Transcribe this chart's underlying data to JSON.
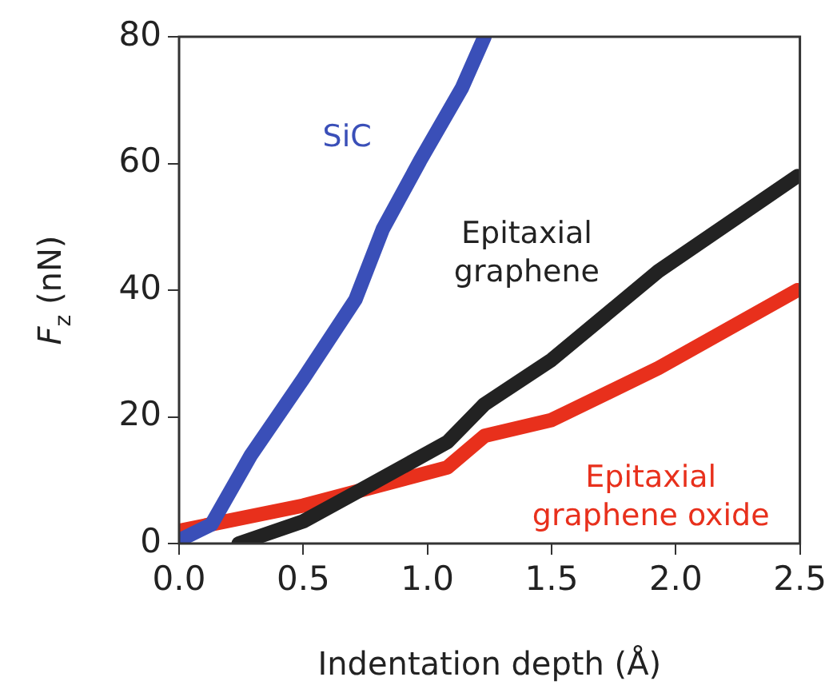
{
  "chart_data": {
    "type": "line",
    "xlabel": "Indentation depth (Å)",
    "ylabel": "F$_{z}$ (nN)",
    "xlim": [
      0,
      2.5
    ],
    "xticks": [
      {
        "value": 0,
        "label": "0.0"
      },
      0.5,
      {
        "value": 1,
        "label": "1.0"
      },
      1.5,
      {
        "value": 2,
        "label": "2.0"
      },
      2.5
    ],
    "ylim": [
      0,
      80
    ],
    "yticks": [
      0,
      20,
      40,
      60,
      80
    ],
    "grid": false,
    "legend": false,
    "marker": "none",
    "line_style": "solid",
    "series": [
      {
        "name": "SiC",
        "color": "#3a4fb8",
        "x": [
          0,
          0.13,
          0.29,
          0.5,
          0.71,
          0.82,
          0.97,
          1.14,
          1.23
        ],
        "values": [
          0.5,
          3,
          14,
          26,
          38.5,
          49.6,
          60.4,
          72,
          80
        ]
      },
      {
        "name": "Epitaxial\ngraphene",
        "color": "#222222",
        "x": [
          0.24,
          0.5,
          0.71,
          1.08,
          1.23,
          1.5,
          1.93,
          2.49
        ],
        "values": [
          0,
          3.5,
          8,
          16,
          22,
          29,
          43,
          58
        ]
      },
      {
        "name": "Epitaxial\ngraphene oxide",
        "color": "#e8301c",
        "x": [
          0,
          0.5,
          1.08,
          1.23,
          1.5,
          1.93,
          2.49
        ],
        "values": [
          2,
          6,
          12,
          17,
          19.5,
          27.7,
          40
        ]
      }
    ]
  }
}
